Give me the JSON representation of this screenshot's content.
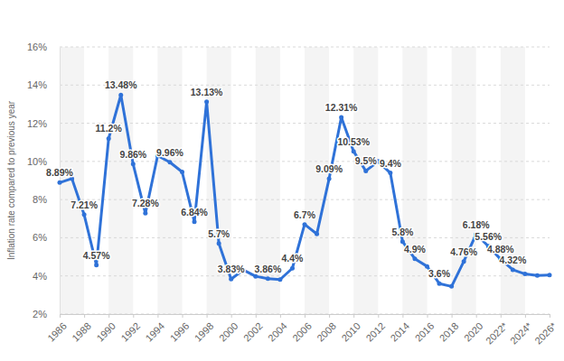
{
  "chart_data": {
    "type": "line",
    "ylabel": "Inflation rate compared to previous year",
    "x": [
      1986,
      1987,
      1988,
      1989,
      1990,
      1991,
      1992,
      1993,
      1994,
      1995,
      1996,
      1997,
      1998,
      1999,
      2000,
      2001,
      2002,
      2003,
      2004,
      2005,
      2006,
      2007,
      2008,
      2009,
      2010,
      2011,
      2012,
      2013,
      2014,
      2015,
      2016,
      2017,
      2018,
      2019,
      2020,
      2021,
      2022,
      2023,
      2024,
      2025,
      2026
    ],
    "values": [
      8.89,
      9.1,
      7.21,
      4.57,
      11.2,
      13.48,
      9.86,
      7.28,
      10.3,
      9.96,
      9.45,
      6.84,
      13.13,
      5.7,
      3.83,
      4.31,
      3.98,
      3.86,
      3.81,
      4.4,
      6.7,
      6.2,
      9.09,
      12.31,
      10.53,
      9.5,
      10.0,
      9.4,
      5.8,
      4.9,
      4.5,
      3.6,
      3.45,
      4.76,
      6.18,
      5.56,
      4.88,
      4.32,
      4.1,
      4.02,
      4.05
    ],
    "value_labels": [
      "8.89%",
      null,
      "7.21%",
      "4.57%",
      "11.2%",
      "13.48%",
      "9.86%",
      "7.28%",
      null,
      "9.96%",
      null,
      "6.84%",
      "13.13%",
      "5.7%",
      "3.83%",
      null,
      null,
      "3.86%",
      null,
      "4.4%",
      "6.7%",
      null,
      "9.09%",
      "12.31%",
      "10.53%",
      "9.5%",
      null,
      "9.4%",
      "5.8%",
      "4.9%",
      null,
      "3.6%",
      null,
      "4.76%",
      "6.18%",
      "5.56%",
      "4.88%",
      "4.32%",
      null,
      null,
      null
    ],
    "color": "#2f72d8",
    "marker": "circle",
    "data_labels": true,
    "grid": true,
    "xlim": [
      1986,
      2026
    ],
    "xticks": [
      1986,
      1988,
      1990,
      1992,
      1994,
      1996,
      1998,
      2000,
      2002,
      2004,
      2006,
      2008,
      2010,
      2012,
      2014,
      2016,
      2018,
      2020,
      {
        "value": 2022,
        "label": "2022*"
      },
      {
        "value": 2024,
        "label": "2024*"
      },
      {
        "value": 2026,
        "label": "2026*"
      }
    ],
    "ylim": [
      2,
      16
    ],
    "yticks": [
      {
        "value": 2,
        "label": "2%"
      },
      {
        "value": 4,
        "label": "4%"
      },
      {
        "value": 6,
        "label": "6%"
      },
      {
        "value": 8,
        "label": "8%"
      },
      {
        "value": 10,
        "label": "10%"
      },
      {
        "value": 12,
        "label": "12%"
      },
      {
        "value": 14,
        "label": "14%"
      },
      {
        "value": 16,
        "label": "16%"
      }
    ]
  }
}
